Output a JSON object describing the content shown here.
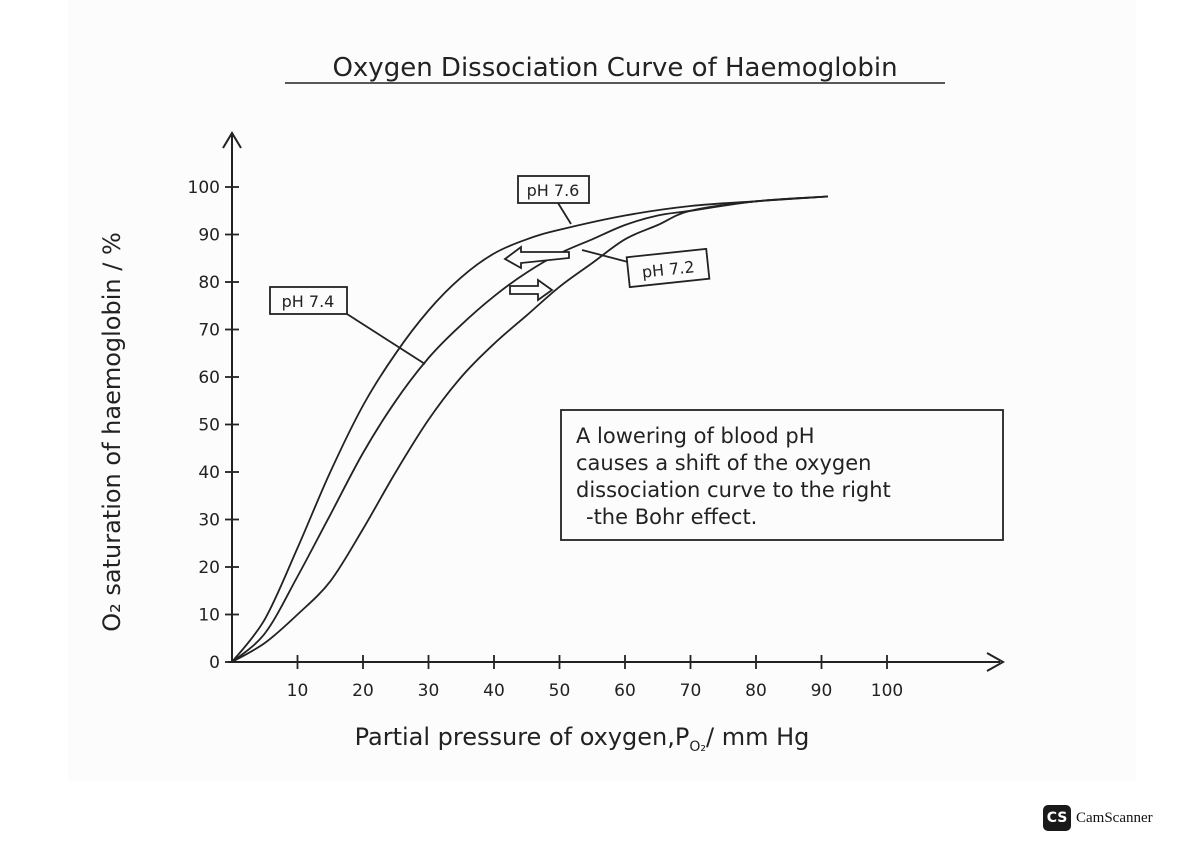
{
  "chart_data": {
    "type": "line",
    "title": "Oxygen Dissociation Curve of Haemoglobin",
    "xlabel": "Partial pressure of oxygen,P",
    "xlabel_subscript": "O₂",
    "xlabel_suffix": "/ mm Hg",
    "ylabel": "O₂ saturation of haemoglobin / %",
    "xlim": [
      0,
      118
    ],
    "ylim": [
      0,
      108
    ],
    "x_ticks": [
      10,
      20,
      30,
      40,
      50,
      60,
      70,
      80,
      90,
      100
    ],
    "x_tick_labels": [
      "10",
      "20",
      "30",
      "40",
      "50",
      "60",
      "70",
      "80",
      "90",
      "100"
    ],
    "y_ticks": [
      0,
      10,
      20,
      30,
      40,
      50,
      60,
      70,
      80,
      90,
      100
    ],
    "y_tick_labels": [
      "0",
      "10",
      "20",
      "30",
      "40",
      "50",
      "60",
      "70",
      "80",
      "90",
      "100"
    ],
    "grid": false,
    "series": [
      {
        "name": "pH 7.6",
        "x": [
          0,
          5,
          10,
          15,
          20,
          25,
          30,
          35,
          40,
          45,
          50,
          60,
          70,
          80,
          91
        ],
        "y": [
          0,
          9,
          24,
          40,
          54,
          65,
          74,
          81,
          86,
          89,
          91,
          94,
          96,
          97,
          98
        ]
      },
      {
        "name": "pH 7.4",
        "x": [
          0,
          5,
          10,
          15,
          20,
          25,
          30,
          35,
          40,
          45,
          50,
          55,
          60,
          65,
          70,
          80,
          91
        ],
        "y": [
          0,
          6,
          18,
          31,
          44,
          55,
          64,
          71,
          77,
          82,
          86,
          89,
          92,
          94,
          95,
          97,
          98
        ]
      },
      {
        "name": "pH 7.2",
        "x": [
          0,
          5,
          10,
          15,
          20,
          25,
          30,
          35,
          40,
          45,
          50,
          55,
          60,
          65,
          70,
          80,
          91
        ],
        "y": [
          0,
          4,
          10,
          17,
          28,
          40,
          51,
          60,
          67,
          73,
          79,
          84,
          89,
          92,
          95,
          97,
          98
        ]
      }
    ],
    "labels": {
      "ph76": "pH 7.6",
      "ph74": "pH 7.4",
      "ph72": "pH 7.2"
    },
    "annotation": {
      "lines": [
        "A lowering of blood pH",
        "causes a shift of the oxygen",
        "dissociation curve to the right",
        "-the Bohr effect."
      ]
    }
  },
  "footer": {
    "logo_text": "CS",
    "app_name": "CamScanner"
  },
  "colors": {
    "ink": "#222222",
    "paper": "#fcfcfc",
    "badge": "#1a1a1a"
  }
}
